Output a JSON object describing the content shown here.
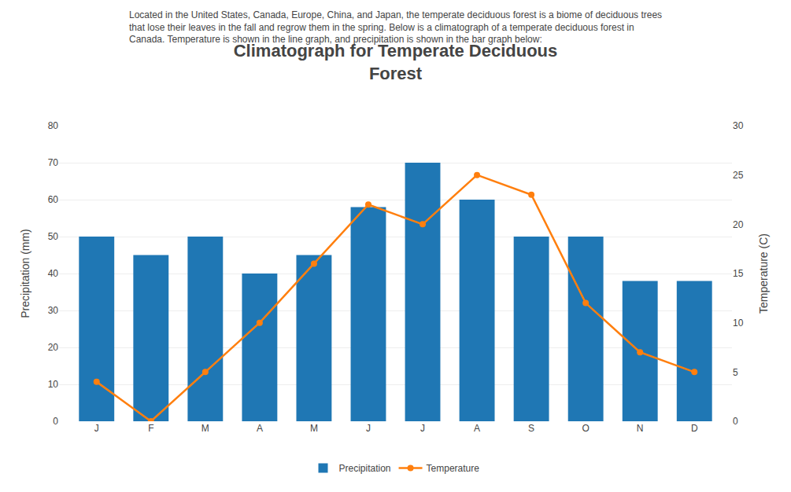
{
  "chart_data": {
    "type": "bar",
    "title": "Climatograph for Temperate Deciduous\nForest",
    "annotations": [
      "Located in the United States, Canada, Europe, China, and Japan, the temperate deciduous forest is a biome of deciduous trees",
      "that lose their leaves in the fall and regrow them in the spring. Below is a climatograph of a temperate deciduous forest in",
      "Canada. Temperature is shown in the line graph, and precipitation is shown in the bar graph below:"
    ],
    "categories": [
      "J",
      "F",
      "M",
      "A",
      "M",
      "J",
      "J",
      "A",
      "S",
      "O",
      "N",
      "D"
    ],
    "series": [
      {
        "name": "Precipitation",
        "type": "bar",
        "values": [
          50,
          45,
          50,
          40,
          45,
          58,
          70,
          60,
          50,
          50,
          38,
          38
        ]
      },
      {
        "name": "Temperature",
        "type": "line",
        "axis": "y2",
        "marker": "circle",
        "values": [
          4,
          0,
          5,
          10,
          16,
          22,
          20,
          25,
          23,
          12,
          7,
          5
        ]
      }
    ],
    "ylabel": "Precipitation (mm)",
    "y2label": "Temperature (C)",
    "ylim": [
      0,
      80
    ],
    "yticks": [
      0,
      10,
      20,
      30,
      40,
      50,
      60,
      70,
      80
    ],
    "y2lim": [
      0,
      30
    ],
    "y2ticks": [
      0,
      5,
      10,
      15,
      20,
      25,
      30
    ],
    "grid": true,
    "legend": "bottom"
  }
}
